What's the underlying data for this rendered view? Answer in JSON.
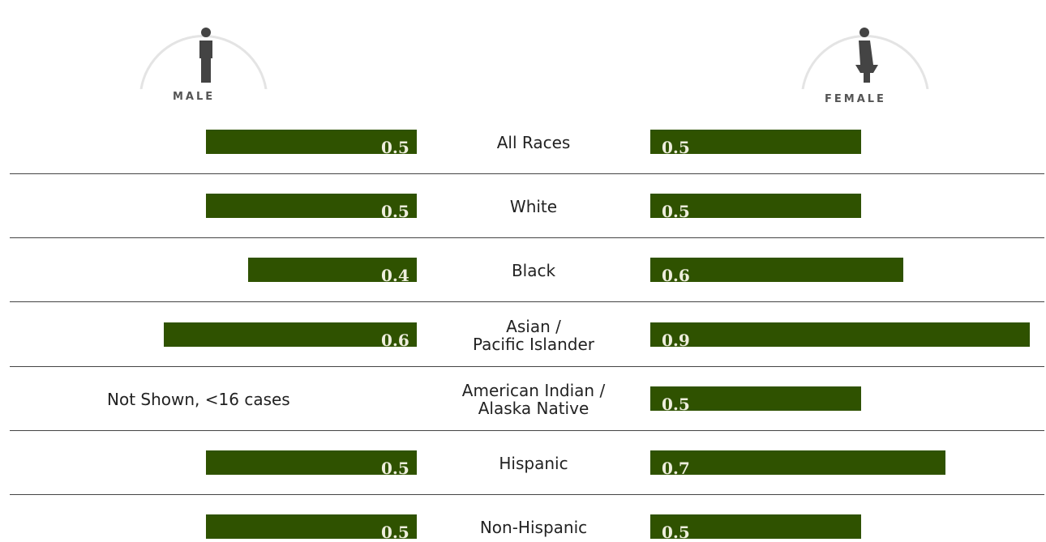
{
  "chart_data": {
    "type": "butterfly-bar",
    "categories": [
      "All Races",
      "White",
      "Black",
      "Asian /\nPacific Islander",
      "American Indian /\nAlaska Native",
      "Hispanic",
      "Non-Hispanic"
    ],
    "series": [
      {
        "name": "MALE",
        "color": "#2f5200",
        "values": [
          0.5,
          0.5,
          0.4,
          0.6,
          null,
          0.5,
          0.5
        ],
        "missing_label": "Not Shown, <16 cases"
      },
      {
        "name": "FEMALE",
        "color": "#2f5200",
        "values": [
          0.5,
          0.5,
          0.6,
          0.9,
          0.5,
          0.7,
          0.5
        ]
      }
    ]
  }
}
